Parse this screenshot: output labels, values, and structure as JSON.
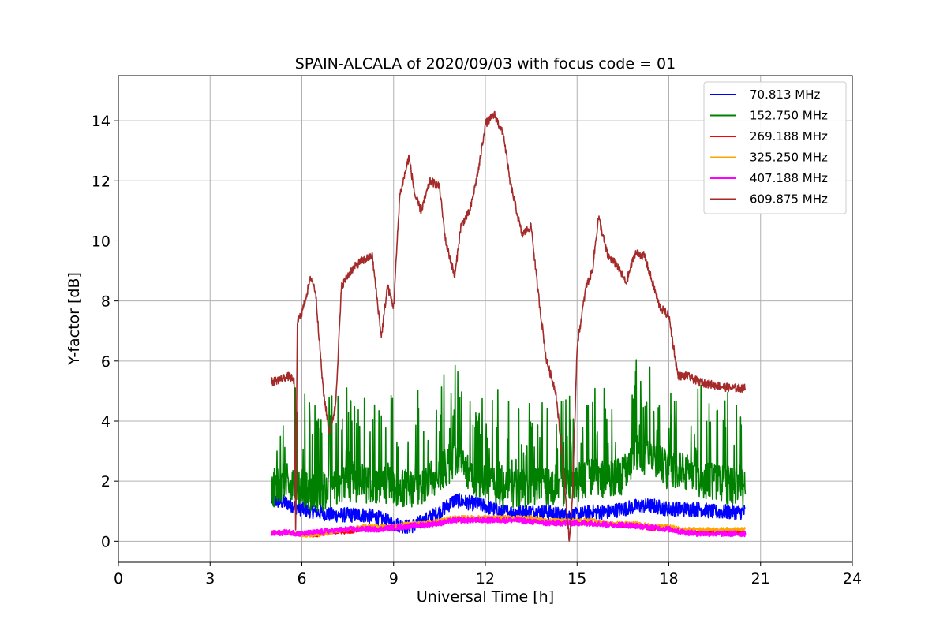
{
  "chart_data": {
    "type": "line",
    "title": "SPAIN-ALCALA of 2020/09/03 with focus code = 01",
    "xlabel": "Universal Time [h]",
    "ylabel": "Y-factor [dB]",
    "xlim": [
      0,
      24
    ],
    "ylim": [
      -0.7,
      15.5
    ],
    "xticks": [
      0,
      3,
      6,
      9,
      12,
      15,
      18,
      21,
      24
    ],
    "yticks": [
      0,
      2,
      4,
      6,
      8,
      10,
      12,
      14
    ],
    "grid": true,
    "legend_position": "top-right",
    "series": [
      {
        "name": " 70.813 MHz",
        "color": "#0000ff",
        "noise": 0.5,
        "x": [
          5.0,
          5.5,
          6.0,
          6.5,
          7.0,
          7.5,
          8.0,
          8.5,
          9.0,
          9.5,
          10.0,
          10.5,
          11.0,
          11.5,
          12.0,
          12.5,
          13.0,
          13.5,
          14.0,
          14.5,
          15.0,
          15.5,
          16.0,
          16.5,
          17.0,
          17.5,
          18.0,
          18.5,
          19.0,
          19.5,
          20.0,
          20.5
        ],
        "y": [
          1.3,
          1.2,
          1.0,
          0.9,
          0.8,
          0.8,
          0.8,
          0.7,
          0.5,
          0.4,
          0.6,
          0.9,
          1.3,
          1.2,
          1.1,
          0.9,
          0.9,
          0.9,
          0.9,
          0.8,
          0.8,
          0.9,
          0.9,
          1.0,
          1.1,
          1.1,
          1.0,
          1.0,
          1.0,
          0.9,
          0.9,
          0.9
        ]
      },
      {
        "name": "152.750 MHz",
        "color": "#008000",
        "noise": 1.6,
        "x": [
          5.0,
          5.5,
          6.0,
          6.5,
          7.0,
          7.5,
          8.0,
          8.5,
          9.0,
          9.5,
          10.0,
          10.5,
          11.0,
          11.5,
          12.0,
          12.5,
          13.0,
          13.5,
          14.0,
          14.5,
          15.0,
          15.5,
          16.0,
          16.5,
          17.0,
          17.5,
          18.0,
          18.5,
          19.0,
          19.5,
          20.0,
          20.5
        ],
        "y": [
          1.6,
          1.8,
          1.6,
          1.4,
          1.5,
          1.8,
          1.8,
          1.6,
          1.7,
          1.6,
          1.7,
          2.1,
          2.6,
          2.2,
          1.7,
          1.6,
          1.6,
          1.7,
          1.7,
          1.6,
          1.7,
          2.0,
          1.9,
          2.0,
          2.8,
          2.6,
          2.2,
          2.2,
          2.0,
          1.8,
          1.7,
          1.6
        ]
      },
      {
        "name": "269.188 MHz",
        "color": "#ff0000",
        "noise": 0.12,
        "x": [
          5.0,
          5.5,
          6.0,
          6.5,
          7.0,
          7.5,
          8.0,
          8.5,
          9.0,
          9.5,
          10.0,
          10.5,
          11.0,
          11.5,
          12.0,
          12.5,
          13.0,
          13.5,
          14.0,
          14.5,
          15.0,
          15.5,
          16.0,
          16.5,
          17.0,
          17.5,
          18.0,
          18.5,
          19.0,
          19.5,
          20.0,
          20.5
        ],
        "y": [
          0.3,
          0.3,
          0.2,
          0.2,
          0.3,
          0.3,
          0.4,
          0.4,
          0.5,
          0.5,
          0.6,
          0.6,
          0.7,
          0.7,
          0.7,
          0.7,
          0.7,
          0.7,
          0.6,
          0.6,
          0.6,
          0.6,
          0.6,
          0.5,
          0.5,
          0.4,
          0.4,
          0.3,
          0.3,
          0.3,
          0.3,
          0.3
        ]
      },
      {
        "name": "325.250 MHz",
        "color": "#ffa500",
        "noise": 0.12,
        "x": [
          5.0,
          5.5,
          6.0,
          6.5,
          7.0,
          7.5,
          8.0,
          8.5,
          9.0,
          9.5,
          10.0,
          10.5,
          11.0,
          11.5,
          12.0,
          12.5,
          13.0,
          13.5,
          14.0,
          14.5,
          15.0,
          15.5,
          16.0,
          16.5,
          17.0,
          17.5,
          18.0,
          18.5,
          19.0,
          19.5,
          20.0,
          20.5
        ],
        "y": [
          0.3,
          0.3,
          0.2,
          0.2,
          0.3,
          0.4,
          0.5,
          0.5,
          0.5,
          0.6,
          0.6,
          0.7,
          0.8,
          0.8,
          0.8,
          0.8,
          0.8,
          0.8,
          0.7,
          0.7,
          0.7,
          0.7,
          0.6,
          0.6,
          0.6,
          0.5,
          0.5,
          0.4,
          0.4,
          0.4,
          0.4,
          0.4
        ]
      },
      {
        "name": "407.188 MHz",
        "color": "#ff00ff",
        "noise": 0.18,
        "x": [
          5.0,
          5.5,
          6.0,
          6.5,
          7.0,
          7.5,
          8.0,
          8.5,
          9.0,
          9.5,
          10.0,
          10.5,
          11.0,
          11.5,
          12.0,
          12.5,
          13.0,
          13.5,
          14.0,
          14.5,
          15.0,
          15.5,
          16.0,
          16.5,
          17.0,
          17.5,
          18.0,
          18.5,
          19.0,
          19.5,
          20.0,
          20.5
        ],
        "y": [
          0.25,
          0.3,
          0.25,
          0.3,
          0.35,
          0.4,
          0.4,
          0.4,
          0.45,
          0.5,
          0.55,
          0.6,
          0.7,
          0.7,
          0.7,
          0.7,
          0.7,
          0.65,
          0.6,
          0.6,
          0.6,
          0.6,
          0.55,
          0.55,
          0.5,
          0.45,
          0.4,
          0.3,
          0.25,
          0.25,
          0.25,
          0.25
        ]
      },
      {
        "name": "609.875 MHz",
        "color": "#a52a2a",
        "noise": 0.28,
        "x": [
          5.0,
          5.3,
          5.6,
          5.75,
          5.8,
          5.85,
          6.0,
          6.3,
          6.45,
          6.7,
          6.9,
          7.1,
          7.3,
          7.6,
          7.9,
          8.3,
          8.6,
          8.8,
          9.0,
          9.2,
          9.5,
          9.7,
          9.9,
          10.2,
          10.5,
          10.7,
          11.0,
          11.2,
          11.5,
          11.8,
          12.0,
          12.3,
          12.6,
          12.8,
          13.2,
          13.5,
          13.7,
          14.0,
          14.3,
          14.55,
          14.7,
          14.75,
          14.85,
          15.0,
          15.3,
          15.5,
          15.7,
          16.0,
          16.3,
          16.6,
          16.9,
          17.2,
          17.5,
          17.7,
          18.0,
          18.3,
          18.6,
          19.0,
          19.5,
          20.0,
          20.5
        ],
        "y": [
          5.3,
          5.4,
          5.5,
          5.3,
          0.1,
          7.3,
          7.6,
          8.8,
          8.3,
          5.0,
          3.6,
          4.5,
          8.5,
          9.0,
          9.3,
          9.5,
          6.8,
          8.5,
          7.8,
          11.5,
          12.8,
          11.5,
          11.0,
          12.0,
          11.8,
          10.0,
          8.8,
          10.5,
          11.0,
          12.5,
          13.9,
          14.2,
          13.5,
          12.0,
          10.2,
          10.5,
          8.5,
          6.0,
          5.0,
          2.5,
          0.5,
          0.0,
          1.5,
          6.5,
          8.5,
          9.0,
          10.8,
          9.5,
          9.2,
          8.6,
          9.6,
          9.5,
          8.5,
          7.8,
          7.5,
          5.5,
          5.5,
          5.3,
          5.2,
          5.1,
          5.1
        ]
      }
    ]
  }
}
